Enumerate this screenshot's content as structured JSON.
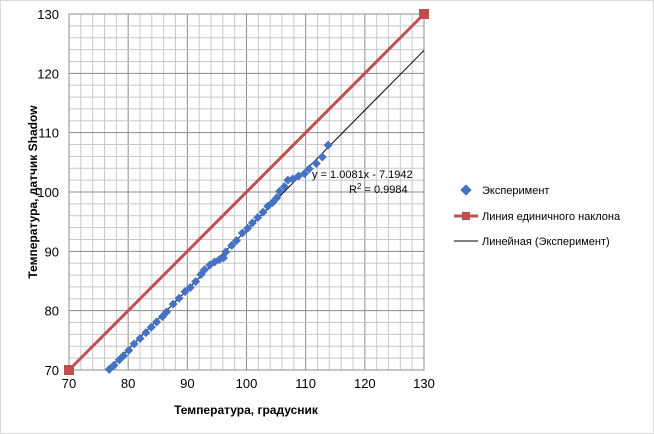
{
  "chart_data": {
    "type": "scatter",
    "xlabel": "Температура,  градусник",
    "ylabel": "Температура,  датчик Shadow",
    "xlim": [
      70,
      130
    ],
    "ylim": [
      70,
      130
    ],
    "xticks": [
      70,
      80,
      90,
      100,
      110,
      120,
      130
    ],
    "yticks": [
      70,
      80,
      90,
      100,
      110,
      120,
      130
    ],
    "minor_grid_step": 2,
    "grid": true,
    "legend_position": "right",
    "series": [
      {
        "name": "Эксперимент",
        "kind": "scatter",
        "marker": "diamond",
        "color": "#4472C4",
        "x": [
          76.8,
          77.6,
          78.5,
          79.2,
          80.1,
          81.0,
          82.0,
          83.0,
          83.9,
          84.8,
          85.8,
          86.5,
          87.6,
          88.6,
          89.6,
          90.5,
          91.4,
          92.3,
          92.9,
          93.8,
          94.6,
          95.4,
          96.1,
          96.5,
          97.5,
          98.3,
          99.3,
          100.2,
          101.0,
          101.9,
          102.8,
          103.6,
          104.4,
          105.1,
          105.6,
          106.4,
          107.0,
          107.8,
          108.8,
          109.8,
          110.6,
          111.8,
          112.8,
          113.8
        ],
        "y": [
          70.1,
          70.8,
          71.7,
          72.4,
          73.3,
          74.4,
          75.3,
          76.3,
          77.2,
          78.1,
          79.0,
          79.8,
          81.1,
          82.1,
          83.2,
          83.9,
          84.9,
          86.1,
          86.9,
          87.7,
          88.2,
          88.6,
          88.9,
          89.9,
          91.0,
          91.8,
          93.1,
          93.9,
          94.8,
          95.7,
          96.6,
          97.6,
          98.2,
          99.0,
          100.1,
          100.9,
          102.0,
          102.2,
          102.7,
          103.1,
          103.9,
          104.8,
          105.9,
          107.9
        ]
      },
      {
        "name": "Линия единичного наклона",
        "kind": "line-markers",
        "marker": "square",
        "color": "#C0504D",
        "x": [
          70,
          130
        ],
        "y": [
          70,
          130
        ]
      },
      {
        "name": "Линейная (Эксперимент)",
        "kind": "trendline",
        "color": "#000000",
        "slope": 1.0081,
        "intercept": -7.1942,
        "x_range": [
          76.5,
          130
        ]
      }
    ],
    "annotations": {
      "equation": "y = 1.0081x - 7.1942",
      "r2_prefix": "R",
      "r2_sup": "2",
      "r2_suffix": " = 0.9984"
    }
  }
}
